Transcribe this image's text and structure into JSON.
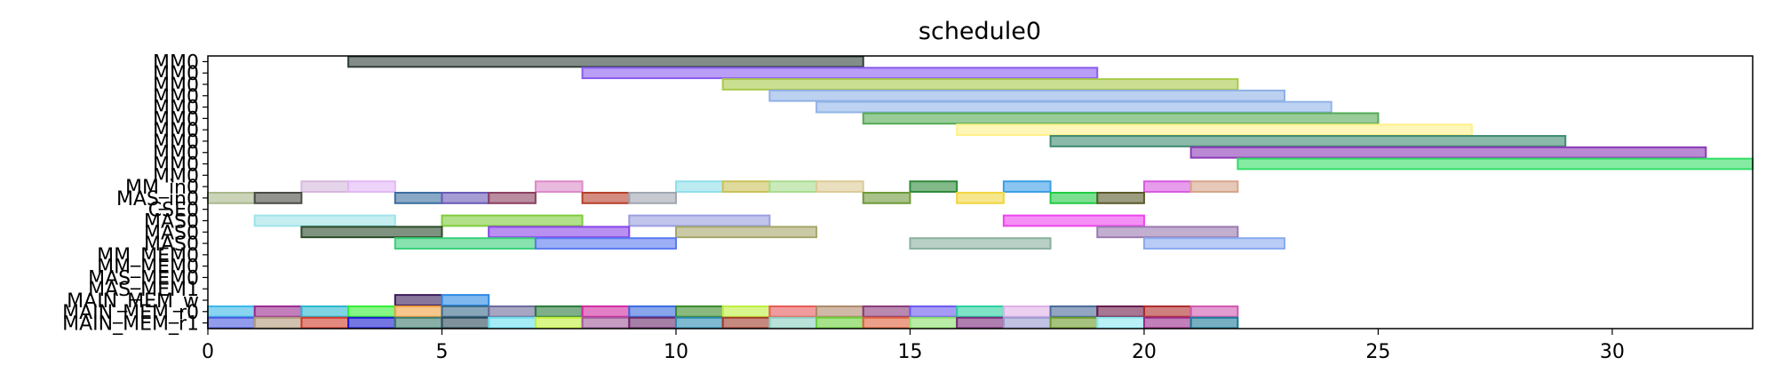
{
  "chart_data": {
    "type": "gantt",
    "title": "schedule0",
    "xlabel": "",
    "ylabel": "",
    "xlim": [
      0,
      33
    ],
    "xticks": [
      0,
      5,
      10,
      15,
      20,
      25,
      30
    ],
    "grid": false,
    "rows": [
      "MM0",
      "MM0",
      "MM0",
      "MM0",
      "MM0",
      "MM0",
      "MM0",
      "MM0",
      "MM0",
      "MM0",
      "MM0",
      "MM_in0",
      "MAS_in0",
      "CSE0",
      "MAS0",
      "MAS0",
      "MAS0",
      "MM_MEM0",
      "MM_MEM0",
      "MAS_MEM0",
      "MAS_MEM1",
      "MAIN_MEM_w",
      "MAIN_MEM_r0",
      "MAIN_MEM_r1"
    ],
    "bars": [
      {
        "row": 0,
        "start": 3,
        "end": 14,
        "color": "#2f3f3a"
      },
      {
        "row": 1,
        "start": 8,
        "end": 19,
        "color": "#8a5cf0"
      },
      {
        "row": 2,
        "start": 11,
        "end": 22,
        "color": "#a9c94a"
      },
      {
        "row": 3,
        "start": 12,
        "end": 23,
        "color": "#8fb0e6"
      },
      {
        "row": 4,
        "start": 13,
        "end": 24,
        "color": "#92b4e8"
      },
      {
        "row": 5,
        "start": 14,
        "end": 25,
        "color": "#55aa55"
      },
      {
        "row": 6,
        "start": 16,
        "end": 27,
        "color": "#fff18a"
      },
      {
        "row": 7,
        "start": 18,
        "end": 29,
        "color": "#3e8a72"
      },
      {
        "row": 8,
        "start": 21,
        "end": 32,
        "color": "#8a3bb5"
      },
      {
        "row": 9,
        "start": 22,
        "end": 33,
        "color": "#33dd66"
      },
      {
        "row": 11,
        "start": 2,
        "end": 3,
        "color": "#d6b8dc"
      },
      {
        "row": 11,
        "start": 3,
        "end": 4,
        "color": "#e2b8f5"
      },
      {
        "row": 11,
        "start": 7,
        "end": 8,
        "color": "#dc8ac8"
      },
      {
        "row": 11,
        "start": 10,
        "end": 11,
        "color": "#8fe0ea"
      },
      {
        "row": 11,
        "start": 11,
        "end": 12,
        "color": "#c9c25a"
      },
      {
        "row": 11,
        "start": 12,
        "end": 13,
        "color": "#a8dc8e"
      },
      {
        "row": 11,
        "start": 13,
        "end": 14,
        "color": "#dccb96"
      },
      {
        "row": 11,
        "start": 15,
        "end": 16,
        "color": "#2e8a3a"
      },
      {
        "row": 11,
        "start": 17,
        "end": 18,
        "color": "#3a9ee6"
      },
      {
        "row": 11,
        "start": 20,
        "end": 21,
        "color": "#d85ae0"
      },
      {
        "row": 11,
        "start": 21,
        "end": 22,
        "color": "#d6a58a"
      },
      {
        "row": 12,
        "start": 0,
        "end": 1,
        "color": "#a9b88a"
      },
      {
        "row": 12,
        "start": 1,
        "end": 2,
        "color": "#4a4a45"
      },
      {
        "row": 12,
        "start": 4,
        "end": 5,
        "color": "#3a6e9e"
      },
      {
        "row": 12,
        "start": 5,
        "end": 6,
        "color": "#6a5ab8"
      },
      {
        "row": 12,
        "start": 6,
        "end": 7,
        "color": "#8a4060"
      },
      {
        "row": 12,
        "start": 8,
        "end": 9,
        "color": "#b5402a"
      },
      {
        "row": 12,
        "start": 9,
        "end": 10,
        "color": "#a0a6b0"
      },
      {
        "row": 12,
        "start": 14,
        "end": 15,
        "color": "#6e9a3a"
      },
      {
        "row": 12,
        "start": 16,
        "end": 17,
        "color": "#f0d640"
      },
      {
        "row": 12,
        "start": 18,
        "end": 19,
        "color": "#22cc44"
      },
      {
        "row": 12,
        "start": 19,
        "end": 20,
        "color": "#5a5a2a"
      },
      {
        "row": 14,
        "start": 1,
        "end": 4,
        "color": "#9fe3e8"
      },
      {
        "row": 14,
        "start": 5,
        "end": 8,
        "color": "#7fcc3a"
      },
      {
        "row": 14,
        "start": 9,
        "end": 12,
        "color": "#9a9ee0"
      },
      {
        "row": 14,
        "start": 17,
        "end": 20,
        "color": "#ee44ee"
      },
      {
        "row": 15,
        "start": 2,
        "end": 5,
        "color": "#2a4a2a"
      },
      {
        "row": 15,
        "start": 6,
        "end": 9,
        "color": "#8a44e8"
      },
      {
        "row": 15,
        "start": 10,
        "end": 13,
        "color": "#a6a66a"
      },
      {
        "row": 15,
        "start": 19,
        "end": 22,
        "color": "#9a7ab0"
      },
      {
        "row": 16,
        "start": 4,
        "end": 7,
        "color": "#3ad07a"
      },
      {
        "row": 16,
        "start": 7,
        "end": 10,
        "color": "#5a7af0"
      },
      {
        "row": 16,
        "start": 15,
        "end": 18,
        "color": "#8ab0a0"
      },
      {
        "row": 16,
        "start": 20,
        "end": 23,
        "color": "#8aaaf0"
      },
      {
        "row": 21,
        "start": 4,
        "end": 5,
        "color": "#3a1a5a"
      },
      {
        "row": 21,
        "start": 5,
        "end": 6,
        "color": "#2a8ae6"
      },
      {
        "row": 22,
        "start": 0,
        "end": 1,
        "color": "#3ab8e8"
      },
      {
        "row": 22,
        "start": 1,
        "end": 2,
        "color": "#9a2a90"
      },
      {
        "row": 22,
        "start": 2,
        "end": 3,
        "color": "#2ab8d0"
      },
      {
        "row": 22,
        "start": 3,
        "end": 4,
        "color": "#33ee33"
      },
      {
        "row": 22,
        "start": 4,
        "end": 5,
        "color": "#f0a040"
      },
      {
        "row": 22,
        "start": 5,
        "end": 6,
        "color": "#3a6a8a"
      },
      {
        "row": 22,
        "start": 6,
        "end": 7,
        "color": "#6a6a9a"
      },
      {
        "row": 22,
        "start": 7,
        "end": 8,
        "color": "#2a7a3a"
      },
      {
        "row": 22,
        "start": 8,
        "end": 9,
        "color": "#d02aa0"
      },
      {
        "row": 22,
        "start": 9,
        "end": 10,
        "color": "#3a6ae0"
      },
      {
        "row": 22,
        "start": 10,
        "end": 11,
        "color": "#3a8a2a"
      },
      {
        "row": 22,
        "start": 11,
        "end": 12,
        "color": "#c0f040"
      },
      {
        "row": 22,
        "start": 12,
        "end": 13,
        "color": "#e85a5a"
      },
      {
        "row": 22,
        "start": 13,
        "end": 14,
        "color": "#b08a6a"
      },
      {
        "row": 22,
        "start": 14,
        "end": 15,
        "color": "#8a3a7a"
      },
      {
        "row": 22,
        "start": 15,
        "end": 16,
        "color": "#6a5af0"
      },
      {
        "row": 22,
        "start": 16,
        "end": 17,
        "color": "#2ad0a0"
      },
      {
        "row": 22,
        "start": 17,
        "end": 18,
        "color": "#e0b0e8"
      },
      {
        "row": 22,
        "start": 18,
        "end": 19,
        "color": "#4a6a9a"
      },
      {
        "row": 22,
        "start": 19,
        "end": 20,
        "color": "#6a1a4a"
      },
      {
        "row": 22,
        "start": 20,
        "end": 21,
        "color": "#b02a2a"
      },
      {
        "row": 22,
        "start": 21,
        "end": 22,
        "color": "#d05ab0"
      },
      {
        "row": 23,
        "start": 0,
        "end": 1,
        "color": "#4a5ae0"
      },
      {
        "row": 23,
        "start": 1,
        "end": 2,
        "color": "#b09a7a"
      },
      {
        "row": 23,
        "start": 2,
        "end": 3,
        "color": "#d03a2a"
      },
      {
        "row": 23,
        "start": 3,
        "end": 4,
        "color": "#1a1ad0"
      },
      {
        "row": 23,
        "start": 4,
        "end": 5,
        "color": "#3a7a6a"
      },
      {
        "row": 23,
        "start": 5,
        "end": 6,
        "color": "#2a4a5a"
      },
      {
        "row": 23,
        "start": 6,
        "end": 7,
        "color": "#6ae0f0"
      },
      {
        "row": 23,
        "start": 7,
        "end": 8,
        "color": "#c0f03a"
      },
      {
        "row": 23,
        "start": 8,
        "end": 9,
        "color": "#a05a9a"
      },
      {
        "row": 23,
        "start": 9,
        "end": 10,
        "color": "#6a2a6a"
      },
      {
        "row": 23,
        "start": 10,
        "end": 11,
        "color": "#2a8ab0"
      },
      {
        "row": 23,
        "start": 11,
        "end": 12,
        "color": "#a03a2a"
      },
      {
        "row": 23,
        "start": 12,
        "end": 13,
        "color": "#8ad0c0"
      },
      {
        "row": 23,
        "start": 13,
        "end": 14,
        "color": "#6ad03a"
      },
      {
        "row": 23,
        "start": 14,
        "end": 15,
        "color": "#e0603a"
      },
      {
        "row": 23,
        "start": 15,
        "end": 16,
        "color": "#8ae06a"
      },
      {
        "row": 23,
        "start": 16,
        "end": 17,
        "color": "#7a2a7a"
      },
      {
        "row": 23,
        "start": 17,
        "end": 18,
        "color": "#9a9ad0"
      },
      {
        "row": 23,
        "start": 18,
        "end": 19,
        "color": "#6a9a2a"
      },
      {
        "row": 23,
        "start": 19,
        "end": 20,
        "color": "#8ae8f0"
      },
      {
        "row": 23,
        "start": 20,
        "end": 21,
        "color": "#9a2a8a"
      },
      {
        "row": 23,
        "start": 21,
        "end": 22,
        "color": "#1a7a9a"
      }
    ]
  }
}
